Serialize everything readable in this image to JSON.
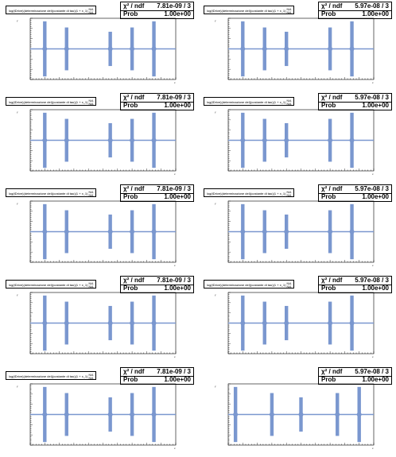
{
  "colors": {
    "marker": "#7a97cf",
    "fit": "#7a97cf",
    "frame": "#000000"
  },
  "chart_data": [
    {
      "type": "scatter",
      "title": "log(tDrive)(determinazione dei)(costante di tau)(1 + x_1)",
      "title_frac": [
        "N/A",
        "N/A"
      ],
      "stats": {
        "chi2_label": "χ² / ndf",
        "chi2_value": "7.81e-09 / 3",
        "prob_label": "Prob",
        "prob_value": "1.00e+00"
      },
      "ylabel": "y",
      "xlabel": "x",
      "yticks": [
        "",
        "",
        "",
        "",
        "",
        ""
      ],
      "xlim": [
        0,
        1
      ],
      "ylim": [
        0,
        1
      ],
      "series": [
        {
          "x": [
            0.1,
            0.25,
            0.55,
            0.7,
            0.85
          ],
          "y": [
            0.5,
            0.5,
            0.5,
            0.5,
            0.5
          ],
          "yerr": [
            0.45,
            0.35,
            0.28,
            0.35,
            0.45
          ]
        }
      ],
      "fit": {
        "y": 0.5
      }
    },
    {
      "type": "scatter",
      "title": "log(tDrive)(determinazione dei)(costante di tau)(1 + x_1)",
      "title_frac": [
        "N/A",
        "N/A"
      ],
      "stats": {
        "chi2_label": "χ² / ndf",
        "chi2_value": "5.97e-08 / 3",
        "prob_label": "Prob",
        "prob_value": "1.00e+00"
      },
      "ylabel": "y",
      "xlabel": "x",
      "yticks": [
        "",
        "",
        "",
        "",
        "",
        ""
      ],
      "xlim": [
        0,
        1
      ],
      "ylim": [
        0,
        1
      ],
      "series": [
        {
          "x": [
            0.1,
            0.25,
            0.4,
            0.7,
            0.85
          ],
          "y": [
            0.5,
            0.5,
            0.5,
            0.5,
            0.5
          ],
          "yerr": [
            0.45,
            0.35,
            0.28,
            0.35,
            0.45
          ]
        }
      ],
      "fit": {
        "y": 0.5
      }
    },
    {
      "type": "scatter",
      "title": "log(tDrive)(determinazione dei)(costante di tau)(1 + x_1)",
      "title_frac": [
        "N/A",
        "N/A"
      ],
      "stats": {
        "chi2_label": "χ² / ndf",
        "chi2_value": "7.81e-09 / 3",
        "prob_label": "Prob",
        "prob_value": "1.00e+00"
      },
      "ylabel": "y",
      "xlabel": "x",
      "yticks": [
        "",
        "",
        "",
        "",
        "",
        ""
      ],
      "xlim": [
        0,
        1
      ],
      "ylim": [
        0,
        1
      ],
      "series": [
        {
          "x": [
            0.1,
            0.25,
            0.55,
            0.7,
            0.85
          ],
          "y": [
            0.5,
            0.5,
            0.5,
            0.5,
            0.5
          ],
          "yerr": [
            0.45,
            0.35,
            0.28,
            0.35,
            0.45
          ]
        }
      ],
      "fit": {
        "y": 0.5
      }
    },
    {
      "type": "scatter",
      "title": "log(tDrive)(determinazione dei)(costante di tau)(1 + x_1)",
      "title_frac": [
        "N/A",
        "N/A"
      ],
      "stats": {
        "chi2_label": "χ² / ndf",
        "chi2_value": "5.97e-08 / 3",
        "prob_label": "Prob",
        "prob_value": "1.00e+00"
      },
      "ylabel": "y",
      "xlabel": "x",
      "yticks": [
        "",
        "",
        "",
        "",
        "",
        ""
      ],
      "xlim": [
        0,
        1
      ],
      "ylim": [
        0,
        1
      ],
      "series": [
        {
          "x": [
            0.1,
            0.25,
            0.4,
            0.7,
            0.85
          ],
          "y": [
            0.5,
            0.5,
            0.5,
            0.5,
            0.5
          ],
          "yerr": [
            0.45,
            0.35,
            0.28,
            0.35,
            0.45
          ]
        }
      ],
      "fit": {
        "y": 0.5
      }
    },
    {
      "type": "scatter",
      "title": "log(tDrive)(determinazione dei)(costante di tau)(1 + x_1)",
      "title_frac": [
        "N/A",
        "N/A"
      ],
      "stats": {
        "chi2_label": "χ² / ndf",
        "chi2_value": "7.81e-09 / 3",
        "prob_label": "Prob",
        "prob_value": "1.00e+00"
      },
      "ylabel": "y",
      "xlabel": "x",
      "yticks": [
        "",
        "",
        "",
        "",
        "",
        ""
      ],
      "xlim": [
        0,
        1
      ],
      "ylim": [
        0,
        1
      ],
      "series": [
        {
          "x": [
            0.1,
            0.25,
            0.55,
            0.7,
            0.85
          ],
          "y": [
            0.5,
            0.5,
            0.5,
            0.5,
            0.5
          ],
          "yerr": [
            0.45,
            0.35,
            0.28,
            0.35,
            0.45
          ]
        }
      ],
      "fit": {
        "y": 0.5
      }
    },
    {
      "type": "scatter",
      "title": "log(tDrive)(determinazione dei)(costante di tau)(1 + x_1)",
      "title_frac": [
        "N/A",
        "N/A"
      ],
      "stats": {
        "chi2_label": "χ² / ndf",
        "chi2_value": "5.97e-08 / 3",
        "prob_label": "Prob",
        "prob_value": "1.00e+00"
      },
      "ylabel": "y",
      "xlabel": "x",
      "yticks": [
        "",
        "",
        "",
        "",
        "",
        ""
      ],
      "xlim": [
        0,
        1
      ],
      "ylim": [
        0,
        1
      ],
      "series": [
        {
          "x": [
            0.1,
            0.25,
            0.4,
            0.7,
            0.85
          ],
          "y": [
            0.5,
            0.5,
            0.5,
            0.5,
            0.5
          ],
          "yerr": [
            0.45,
            0.35,
            0.28,
            0.35,
            0.45
          ]
        }
      ],
      "fit": {
        "y": 0.5
      }
    },
    {
      "type": "scatter",
      "title": "log(tDrive)(determinazione dei)(costante di tau)(1 + x_1)",
      "title_frac": [
        "N/A",
        "N/A"
      ],
      "stats": {
        "chi2_label": "χ² / ndf",
        "chi2_value": "7.81e-09 / 3",
        "prob_label": "Prob",
        "prob_value": "1.00e+00"
      },
      "ylabel": "y",
      "xlabel": "x",
      "yticks": [
        "",
        "",
        "",
        "",
        "",
        ""
      ],
      "xlim": [
        0,
        1
      ],
      "ylim": [
        0,
        1
      ],
      "series": [
        {
          "x": [
            0.1,
            0.25,
            0.55,
            0.7,
            0.85
          ],
          "y": [
            0.5,
            0.5,
            0.5,
            0.5,
            0.5
          ],
          "yerr": [
            0.45,
            0.35,
            0.28,
            0.35,
            0.45
          ]
        }
      ],
      "fit": {
        "y": 0.5
      }
    },
    {
      "type": "scatter",
      "title": "log(tDrive)(determinazione dei)(costante di tau)(1 + x_1)",
      "title_frac": [
        "N/A",
        "N/A"
      ],
      "stats": {
        "chi2_label": "χ² / ndf",
        "chi2_value": "5.97e-08 / 3",
        "prob_label": "Prob",
        "prob_value": "1.00e+00"
      },
      "ylabel": "y",
      "xlabel": "x",
      "yticks": [
        "",
        "",
        "",
        "",
        "",
        ""
      ],
      "xlim": [
        0,
        1
      ],
      "ylim": [
        0,
        1
      ],
      "series": [
        {
          "x": [
            0.1,
            0.25,
            0.4,
            0.7,
            0.85
          ],
          "y": [
            0.5,
            0.5,
            0.5,
            0.5,
            0.5
          ],
          "yerr": [
            0.45,
            0.35,
            0.28,
            0.35,
            0.45
          ]
        }
      ],
      "fit": {
        "y": 0.5
      }
    },
    {
      "type": "scatter",
      "title": "log(tDrive)(determinazione dei)(costante di tau)(1 + x_1)",
      "title_frac": [
        "N/A",
        "N/A"
      ],
      "stats": {
        "chi2_label": "χ² / ndf",
        "chi2_value": "7.81e-09 / 3",
        "prob_label": "Prob",
        "prob_value": "1.00e+00"
      },
      "ylabel": "y",
      "xlabel": "x",
      "yticks": [
        "",
        "",
        "",
        "",
        "",
        ""
      ],
      "xlim": [
        0,
        1
      ],
      "ylim": [
        0,
        1
      ],
      "series": [
        {
          "x": [
            0.1,
            0.25,
            0.55,
            0.7,
            0.85
          ],
          "y": [
            0.5,
            0.5,
            0.5,
            0.5,
            0.5
          ],
          "yerr": [
            0.45,
            0.35,
            0.28,
            0.35,
            0.45
          ]
        }
      ],
      "fit": {
        "y": 0.5
      }
    },
    {
      "type": "scatter",
      "title": "",
      "title_frac": [
        "",
        ""
      ],
      "stats": {
        "chi2_label": "χ² / ndf",
        "chi2_value": "5.97e-08 / 3",
        "prob_label": "Prob",
        "prob_value": "1.00e+00"
      },
      "ylabel": "y",
      "xlabel": "x",
      "yticks": [
        "",
        "",
        "",
        "",
        "",
        ""
      ],
      "xlim": [
        0,
        1
      ],
      "ylim": [
        0,
        1
      ],
      "series": [
        {
          "x": [
            0.05,
            0.3,
            0.5,
            0.75,
            0.9
          ],
          "y": [
            0.5,
            0.5,
            0.5,
            0.5,
            0.5
          ],
          "yerr": [
            0.45,
            0.35,
            0.28,
            0.35,
            0.45
          ]
        }
      ],
      "fit": {
        "y": 0.5
      }
    }
  ]
}
